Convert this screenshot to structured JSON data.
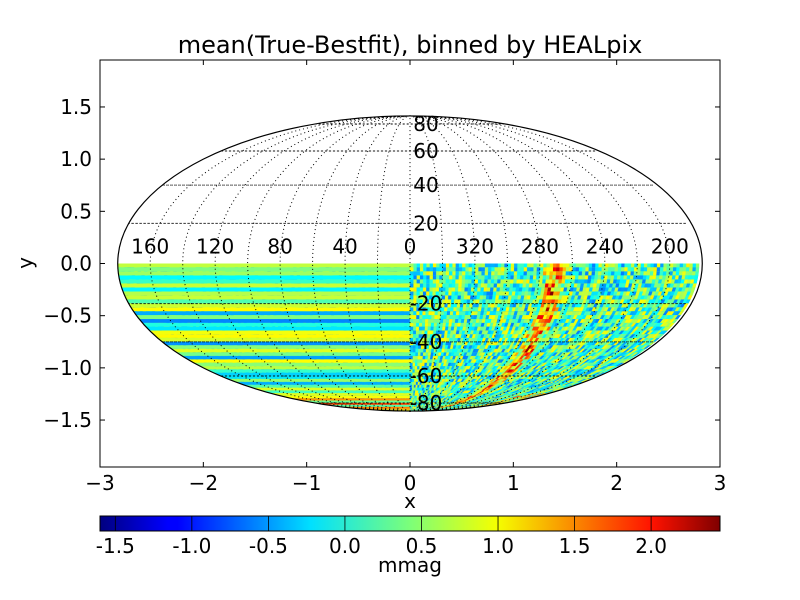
{
  "chart_data": {
    "type": "heatmap",
    "projection": "mollweide",
    "title": "mean(True-Bestfit), binned by HEALpix",
    "xlabel": "x",
    "ylabel": "y",
    "xlim": [
      -3,
      3
    ],
    "ylim": [
      -1.95,
      1.95
    ],
    "x_ticks": [
      -3,
      -2,
      -1,
      0,
      1,
      2,
      3
    ],
    "x_tick_labels": [
      "−3",
      "−2",
      "−1",
      "0",
      "1",
      "2",
      "3"
    ],
    "y_ticks": [
      1.5,
      1.0,
      0.5,
      0.0,
      -0.5,
      -1.0,
      -1.5
    ],
    "y_tick_labels": [
      "1.5",
      "1.0",
      "0.5",
      "0.0",
      "−0.5",
      "−1.0",
      "−1.5"
    ],
    "longitude_labels": [
      {
        "lon": 200,
        "text": "200"
      },
      {
        "lon": 240,
        "text": "240"
      },
      {
        "lon": 280,
        "text": "280"
      },
      {
        "lon": 320,
        "text": "320"
      },
      {
        "lon": 0,
        "text": "0"
      },
      {
        "lon": 40,
        "text": "40"
      },
      {
        "lon": 80,
        "text": "80"
      },
      {
        "lon": 120,
        "text": "120"
      },
      {
        "lon": 160,
        "text": "160"
      }
    ],
    "latitude_labels": [
      {
        "lat": 80,
        "text": "80"
      },
      {
        "lat": 60,
        "text": "60"
      },
      {
        "lat": 40,
        "text": "40"
      },
      {
        "lat": 20,
        "text": "20"
      },
      {
        "lat": -20,
        "text": "-20"
      },
      {
        "lat": -40,
        "text": "-40"
      },
      {
        "lat": -60,
        "text": "-60"
      },
      {
        "lat": -80,
        "text": "-80"
      }
    ],
    "grid": true,
    "data_hemisphere": "south",
    "colormap": "jet",
    "colorbar": {
      "orientation": "horizontal",
      "label": "mmag",
      "range": [
        -1.6,
        2.45
      ],
      "ticks": [
        -1.5,
        -1.0,
        -0.5,
        0.0,
        0.5,
        1.0,
        1.5,
        2.0
      ],
      "tick_labels": [
        "-1.5",
        "-1.0",
        "-0.5",
        "0.0",
        "0.5",
        "1.0",
        "1.5",
        "2.0"
      ]
    },
    "typical_value": 0.2,
    "high_band_lon": 270
  }
}
